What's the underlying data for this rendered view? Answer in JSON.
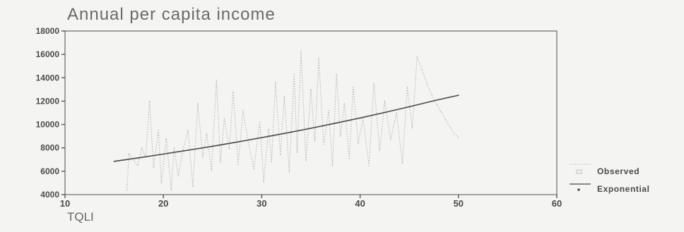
{
  "chart_data": {
    "type": "line",
    "title": "Annual per capita income",
    "xlabel": "TQLI",
    "ylabel": "",
    "xlim": [
      10,
      60
    ],
    "ylim": [
      4000,
      18000
    ],
    "x_ticks": [
      10,
      20,
      30,
      40,
      50,
      60
    ],
    "y_ticks": [
      4000,
      6000,
      8000,
      10000,
      12000,
      14000,
      16000,
      18000
    ],
    "grid": false,
    "legend_position": "bottom-right",
    "series": [
      {
        "name": "Observed",
        "style": "dotted",
        "color": "#b5b5b5",
        "x": [
          16.3,
          16.5,
          17.4,
          17.8,
          18.2,
          18.6,
          19.0,
          19.5,
          19.8,
          20.3,
          20.8,
          21.1,
          21.5,
          22.0,
          22.5,
          23.0,
          23.5,
          24.0,
          24.4,
          24.9,
          25.4,
          25.8,
          26.2,
          26.7,
          27.1,
          27.6,
          28.1,
          28.6,
          29.2,
          29.8,
          30.2,
          30.7,
          31.0,
          31.4,
          31.9,
          32.3,
          32.8,
          33.3,
          33.6,
          34.0,
          34.5,
          35.0,
          35.4,
          35.8,
          36.3,
          36.8,
          37.2,
          37.6,
          38.0,
          38.4,
          38.9,
          39.3,
          39.8,
          40.3,
          40.9,
          41.4,
          42.0,
          42.5,
          43.1,
          43.7,
          44.3,
          44.8,
          45.3,
          45.8,
          46.3,
          46.8,
          47.3,
          47.8,
          48.2,
          48.7,
          49.2,
          49.6,
          50.0
        ],
        "y": [
          4400,
          7500,
          6500,
          8000,
          7200,
          12000,
          6300,
          9500,
          5000,
          8800,
          4400,
          8000,
          5600,
          7800,
          9500,
          4700,
          11800,
          7200,
          9200,
          6100,
          13800,
          6800,
          10500,
          7900,
          12800,
          6600,
          11200,
          8600,
          6200,
          10200,
          5100,
          9600,
          6800,
          13600,
          7400,
          12400,
          5900,
          14300,
          7600,
          16300,
          6900,
          13000,
          8600,
          15700,
          8300,
          11200,
          6500,
          14300,
          9000,
          11800,
          7100,
          13200,
          8400,
          10500,
          6500,
          13500,
          7800,
          12000,
          8700,
          11000,
          6700,
          13200,
          9700,
          15800,
          14700,
          13500,
          12500,
          11700,
          11100,
          10400,
          9700,
          9200,
          8900
        ]
      },
      {
        "name": "Exponential",
        "style": "line",
        "color": "#4a4a4a",
        "x": [
          15,
          17.5,
          20,
          22.5,
          25,
          27.5,
          30,
          32.5,
          35,
          37.5,
          40,
          42.5,
          45,
          47.5,
          50
        ],
        "y": [
          6850,
          7150,
          7470,
          7800,
          8140,
          8500,
          8880,
          9270,
          9680,
          10110,
          10560,
          11030,
          11520,
          12030,
          12500
        ]
      }
    ]
  }
}
